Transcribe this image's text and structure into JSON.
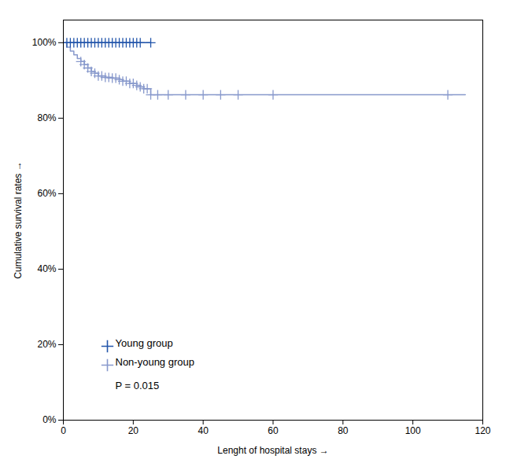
{
  "chart_data": {
    "type": "line",
    "xlabel": "Lenght of hospital stays",
    "ylabel": "Cumulative survival rates",
    "xlim": [
      0,
      120
    ],
    "xticks": [
      0,
      20,
      40,
      60,
      80,
      100,
      120
    ],
    "ylim": [
      0.0,
      1.06
    ],
    "yticks": [
      {
        "value": 0.0,
        "label": "0%"
      },
      {
        "value": 0.2,
        "label": "20%"
      },
      {
        "value": 0.4,
        "label": "40%"
      },
      {
        "value": 0.6,
        "label": "60%"
      },
      {
        "value": 0.8,
        "label": "80%"
      },
      {
        "value": 1.0,
        "label": "100%"
      }
    ],
    "grid": false,
    "legend": "lower left",
    "annotation": "P = 0.015",
    "series": [
      {
        "name": "Young group",
        "color": "#2255aa",
        "type": "line",
        "marker": "plus",
        "x": [
          0,
          25
        ],
        "values": [
          1.0,
          1.0
        ],
        "censor_x": [
          1,
          2,
          3,
          4,
          5,
          6,
          7,
          8,
          9,
          10,
          11,
          12,
          13,
          14,
          15,
          16,
          17,
          18,
          19,
          20,
          21,
          22,
          25
        ],
        "censor_values": [
          1.0,
          1.0,
          1.0,
          1.0,
          1.0,
          1.0,
          1.0,
          1.0,
          1.0,
          1.0,
          1.0,
          1.0,
          1.0,
          1.0,
          1.0,
          1.0,
          1.0,
          1.0,
          1.0,
          1.0,
          1.0,
          1.0,
          1.0
        ]
      },
      {
        "name": "Non-young group",
        "color": "#8899cc",
        "type": "step",
        "marker": "plus",
        "x": [
          0,
          1,
          2,
          3,
          4,
          5,
          6,
          7,
          8,
          9,
          10,
          12,
          14,
          16,
          17,
          19,
          21,
          22,
          23,
          25,
          115
        ],
        "values": [
          1.0,
          0.988,
          0.978,
          0.968,
          0.958,
          0.95,
          0.942,
          0.933,
          0.924,
          0.919,
          0.912,
          0.908,
          0.906,
          0.902,
          0.898,
          0.892,
          0.887,
          0.883,
          0.878,
          0.862,
          0.862
        ],
        "censor_x": [
          5,
          6,
          7,
          8,
          9,
          10,
          11,
          12,
          13,
          14,
          15,
          16,
          17,
          18,
          19,
          20,
          21,
          22,
          23,
          24,
          25,
          27,
          30,
          35,
          40,
          45,
          50,
          60,
          110
        ],
        "censor_values": [
          0.95,
          0.942,
          0.933,
          0.924,
          0.919,
          0.912,
          0.912,
          0.908,
          0.908,
          0.906,
          0.906,
          0.902,
          0.898,
          0.898,
          0.892,
          0.892,
          0.887,
          0.883,
          0.878,
          0.878,
          0.862,
          0.862,
          0.862,
          0.862,
          0.862,
          0.862,
          0.862,
          0.862,
          0.862
        ]
      }
    ]
  }
}
